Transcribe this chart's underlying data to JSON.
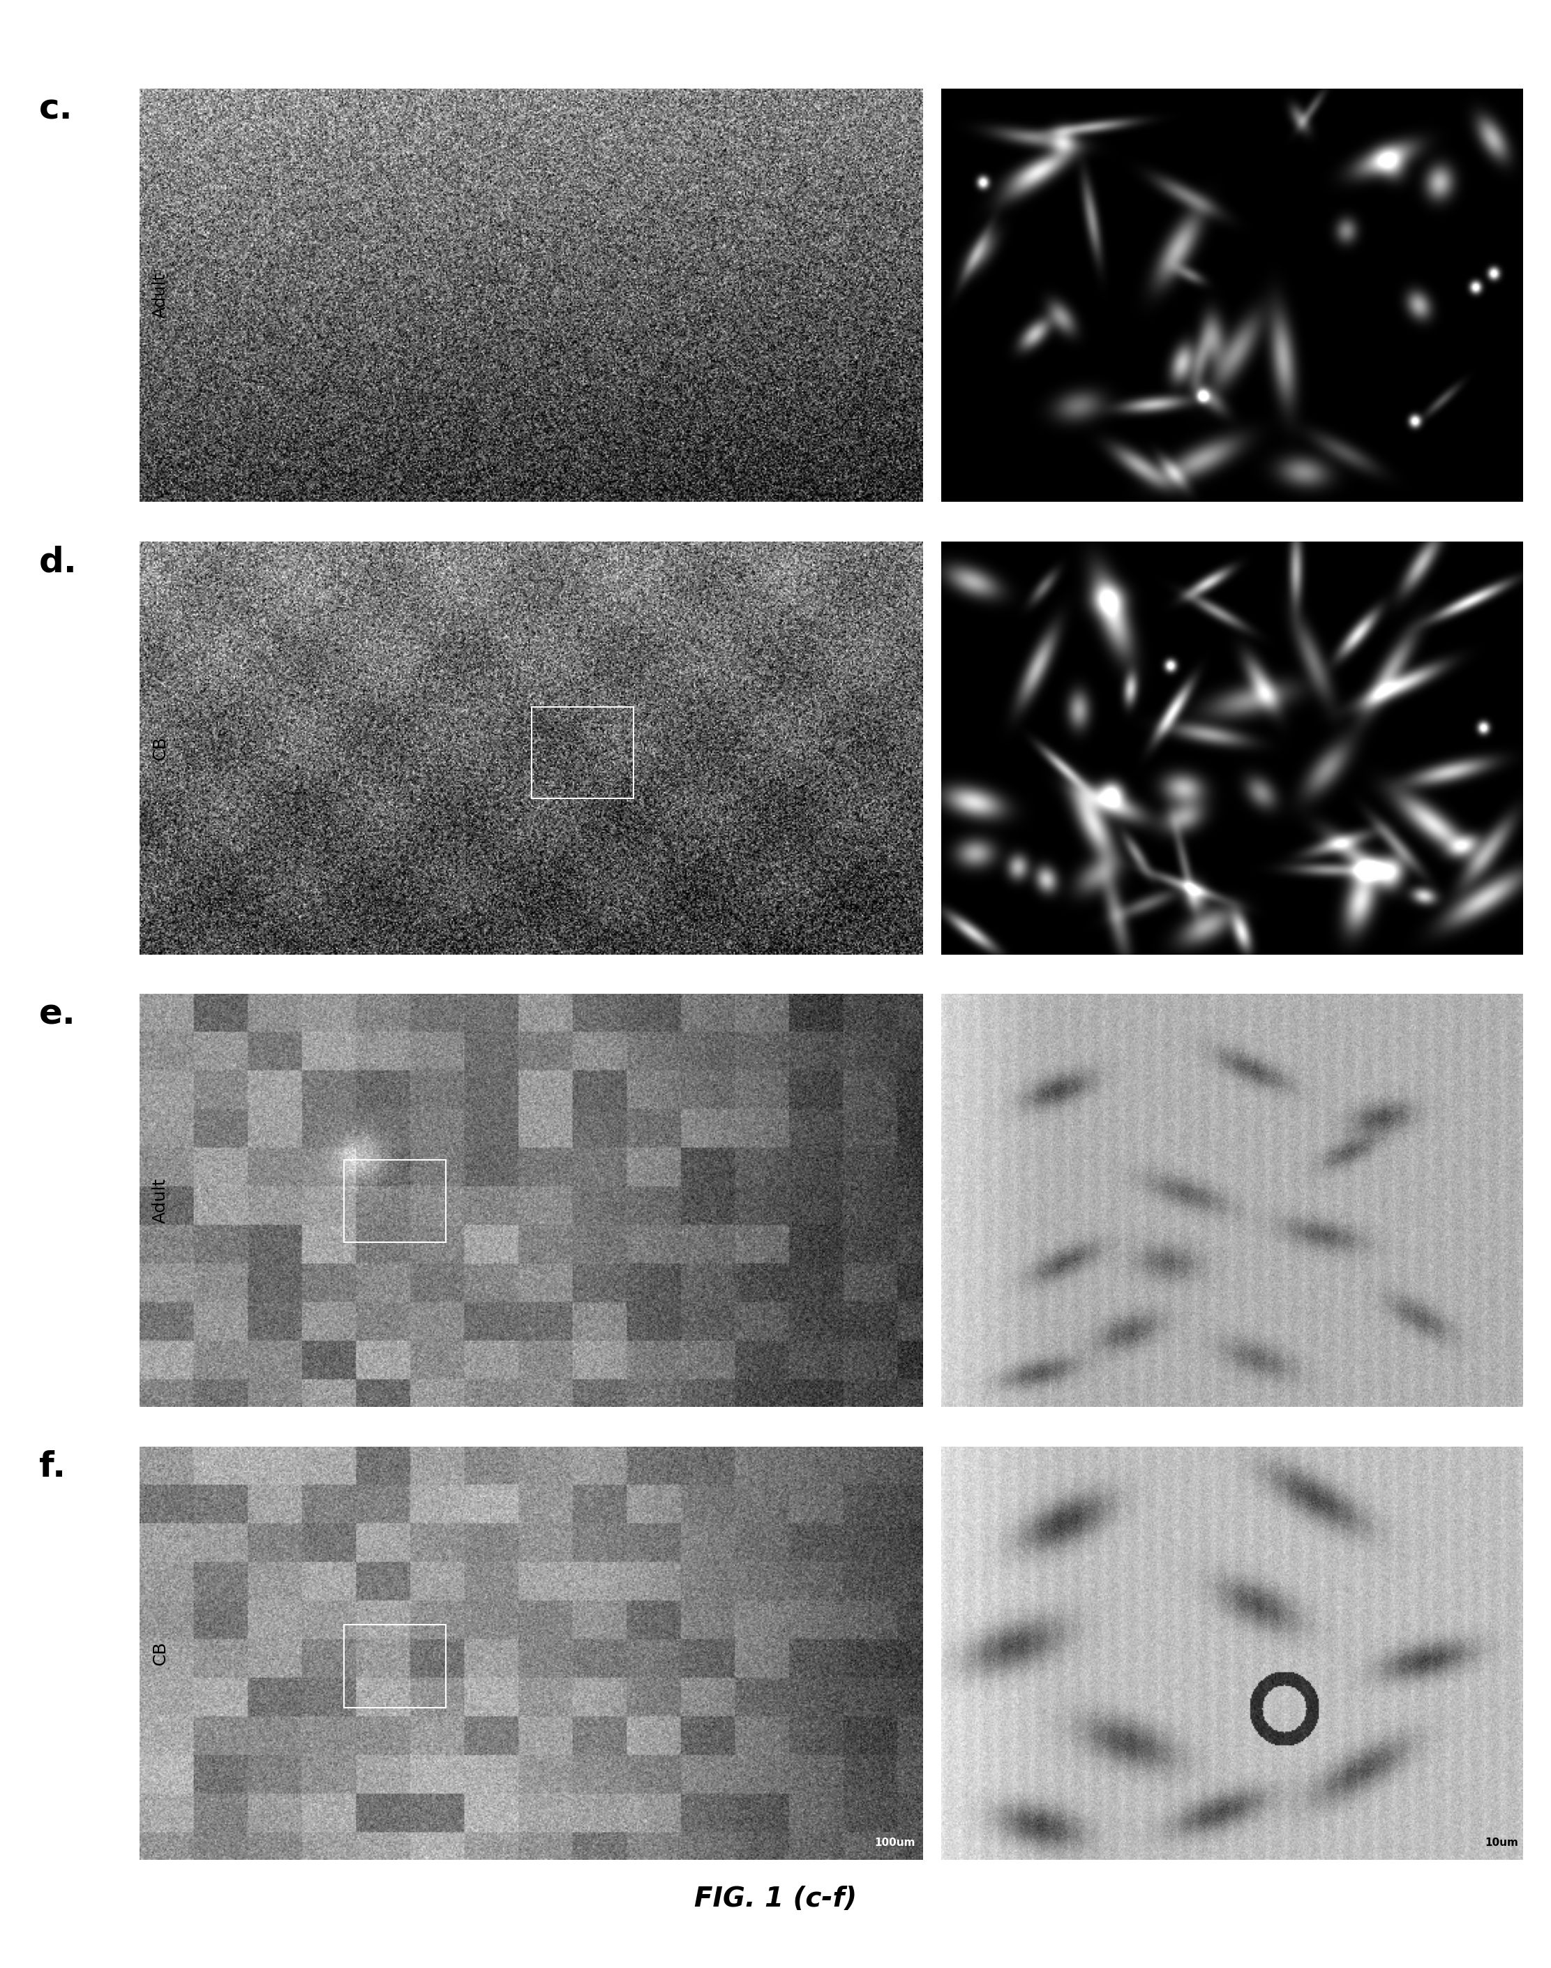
{
  "title": "FIG. 1 (c-f)",
  "title_fontsize": 28,
  "title_fontweight": "bold",
  "background_color": "#ffffff",
  "panel_labels": [
    "c.",
    "d.",
    "e.",
    "f."
  ],
  "side_labels": [
    "Adult",
    "CB",
    "Adult",
    "CB"
  ],
  "panel_label_fontsize": 36,
  "side_label_fontsize": 18,
  "scale_bar_text_f_left": "100um",
  "scale_bar_text_f_right": "10um"
}
